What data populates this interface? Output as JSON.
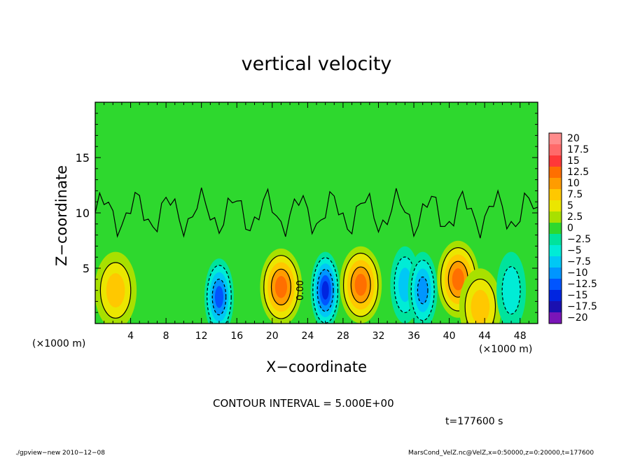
{
  "figure": {
    "title": "vertical velocity",
    "xlabel": "X−coordinate",
    "ylabel": "Z−coordinate",
    "x_unit_left": "(×1000 m)",
    "x_unit_right": "(×1000 m)",
    "contour_interval": "CONTOUR INTERVAL = 5.000E+00",
    "time": "t=177600 s",
    "footer_left": "./gpview−new  2010−12−08",
    "footer_right": "MarsCond_VelZ.nc@VelZ,x=0:50000,z=0:20000,t=177600"
  },
  "chart_data": {
    "type": "heatmap",
    "title": "vertical velocity",
    "xlabel": "X−coordinate",
    "ylabel": "Z−coordinate",
    "x_unit": "×1000 m",
    "xlim": [
      0,
      50
    ],
    "ylim": [
      0,
      20
    ],
    "xticks": [
      4,
      8,
      12,
      16,
      20,
      24,
      28,
      32,
      36,
      40,
      44,
      48
    ],
    "yticks": [
      5,
      10,
      15
    ],
    "colorbar": {
      "labels": [
        "20",
        "17.5",
        "15",
        "12.5",
        "10",
        "7.5",
        "5",
        "2.5",
        "0",
        "−2.5",
        "−5",
        "−7.5",
        "−10",
        "−12.5",
        "−15",
        "−17.5",
        "−20"
      ],
      "colors": [
        "#ff8c8c",
        "#ff6a6a",
        "#ff3838",
        "#ff6f00",
        "#ff9c00",
        "#ffc800",
        "#ebe600",
        "#a8e000",
        "#2ed82e",
        "#00e39c",
        "#00ecd6",
        "#00c8f5",
        "#0096ff",
        "#0055ff",
        "#0025e0",
        "#1a10b0",
        "#7a15b8"
      ]
    },
    "contour_interval": 5.0,
    "annotations": [
      "0.00"
    ],
    "extrema": [
      {
        "x": 2.3,
        "z": 3.0,
        "value": 7.5,
        "kind": "updraft"
      },
      {
        "x": 14.0,
        "z": 2.4,
        "value": -11,
        "kind": "downdraft"
      },
      {
        "x": 21.0,
        "z": 3.3,
        "value": 11,
        "kind": "updraft"
      },
      {
        "x": 26.0,
        "z": 3.0,
        "value": -13,
        "kind": "downdraft"
      },
      {
        "x": 30.0,
        "z": 3.5,
        "value": 11,
        "kind": "updraft"
      },
      {
        "x": 35.0,
        "z": 3.5,
        "value": -6,
        "kind": "downdraft"
      },
      {
        "x": 37.0,
        "z": 3.0,
        "value": -9,
        "kind": "downdraft"
      },
      {
        "x": 41.0,
        "z": 4.0,
        "value": 11,
        "kind": "updraft"
      },
      {
        "x": 43.5,
        "z": 1.5,
        "value": 7,
        "kind": "updraft"
      },
      {
        "x": 47.0,
        "z": 3.0,
        "value": -4,
        "kind": "downdraft"
      }
    ],
    "background_value": 0
  }
}
